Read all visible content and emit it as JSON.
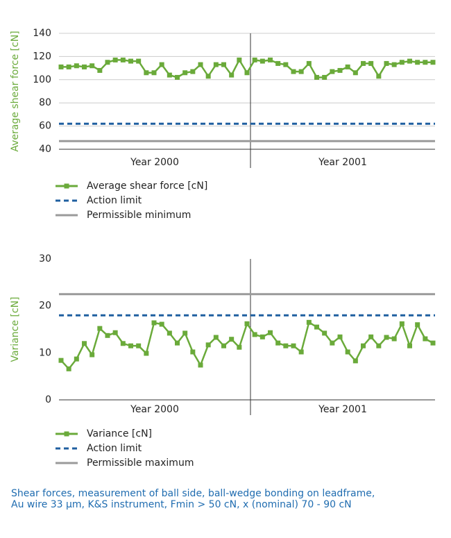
{
  "chart_data": [
    {
      "type": "line",
      "y_label": "Average shear force [cN]",
      "categories": [
        "Year 2000",
        "Year 2001"
      ],
      "ylim": [
        40,
        140
      ],
      "yticks": [
        40,
        60,
        80,
        100,
        120,
        140
      ],
      "grid": true,
      "series": [
        {
          "name": "Average shear force [cN]",
          "color": "#6aaa3a",
          "values": [
            [
              111,
              111,
              112,
              111,
              112,
              108,
              115,
              117,
              117,
              116,
              116,
              106,
              106,
              113,
              104,
              102,
              106,
              107,
              113,
              103,
              113,
              113,
              104,
              117,
              106
            ],
            [
              117,
              116,
              117,
              114,
              113,
              107,
              107,
              114,
              102,
              102,
              107,
              108,
              111,
              106,
              114,
              114,
              103,
              114,
              113,
              115,
              116,
              115,
              115,
              115
            ]
          ]
        },
        {
          "name": "Action limit",
          "color": "#1f5fa0",
          "dash": true,
          "value": 62
        },
        {
          "name": "Permissible minimum",
          "color": "#9a9a9a",
          "value": 47
        }
      ]
    },
    {
      "type": "line",
      "y_label": "Variance [cN]",
      "categories": [
        "Year 2000",
        "Year 2001"
      ],
      "ylim": [
        0,
        30
      ],
      "yticks": [
        0,
        10,
        20,
        30
      ],
      "grid": false,
      "series": [
        {
          "name": "Variance [cN]",
          "color": "#6aaa3a",
          "values": [
            [
              8.4,
              6.6,
              8.7,
              12,
              9.6,
              15.2,
              13.7,
              14.3,
              12,
              11.5,
              11.5,
              9.9,
              16.4,
              16.1,
              14.2,
              12.1,
              14.2,
              10.2,
              7.4,
              11.7,
              13.3,
              11.5,
              12.9,
              11.2,
              16.2
            ],
            [
              13.9,
              13.4,
              14.3,
              12.1,
              11.5,
              11.5,
              10.2,
              16.5,
              15.5,
              14.2,
              12.1,
              13.4,
              10.2,
              8.3,
              11.5,
              13.4,
              11.5,
              13.3,
              13,
              16.2,
              11.5,
              16,
              13,
              12.1
            ]
          ]
        },
        {
          "name": "Action limit",
          "color": "#1f5fa0",
          "dash": true,
          "value": 18
        },
        {
          "name": "Permissible maximum",
          "color": "#9a9a9a",
          "value": 22.5
        }
      ]
    }
  ],
  "caption": [
    "Shear forces, measurement of ball side, ball-wedge bonding on leadframe,",
    "Au wire 33 µm, K&S instrument, Fmin > 50 cN, x (nominal) 70 - 90 cN"
  ]
}
